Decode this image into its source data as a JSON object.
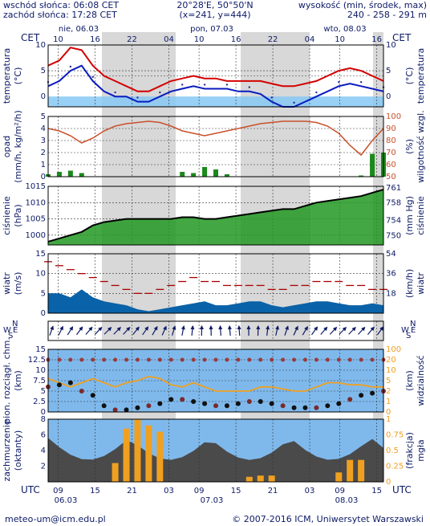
{
  "header": {
    "sunrise": "wschód słońca: 06:08 CET",
    "sunset": "zachód słońca: 17:28 CET",
    "coords": "20°28'E, 50°50'N",
    "grid": "(x=241, y=444)",
    "height_label": "wysokość (min, środek, max)",
    "height_values": "240 - 258 - 291 m"
  },
  "top_axis": {
    "tz_left": "CET",
    "tz_right": "CET",
    "days": [
      "nie, 06.03",
      "pon, 07.03",
      "wto, 08.03"
    ],
    "hours": [
      "10",
      "16",
      "22",
      "04",
      "10",
      "16",
      "22",
      "04",
      "10",
      "16"
    ]
  },
  "bottom_axis": {
    "tz_left": "UTC",
    "tz_right": "UTC",
    "hours": [
      "09",
      "15",
      "21",
      "03",
      "09",
      "15",
      "21",
      "03",
      "09",
      "15"
    ],
    "dates": [
      "06.03",
      "07.03",
      "08.03"
    ]
  },
  "footer": {
    "email": "meteo-um@icm.edu.pl",
    "copyright": "© 2007-2016 ICM, Uniwersytet Warszawski"
  },
  "panels": {
    "temperature": {
      "left_label": "temperatura",
      "left_unit": "(°C)",
      "right_label": "temperatura",
      "right_unit": "(°C)"
    },
    "precip": {
      "left_label": "opad",
      "left_unit": "(mm/h, kg/m²/h)",
      "right_label": "wilgotność wzgl.",
      "right_unit": "(%)"
    },
    "pressure": {
      "left_label": "ciśnienie",
      "left_unit": "(hPa)",
      "right_label": "ciśnienie",
      "right_unit": "(mm Hg)"
    },
    "wind": {
      "left_label": "wiatr",
      "left_unit": "(m/s)",
      "right_label": "wiatr",
      "right_unit": "(km/h)"
    },
    "winddir": {
      "compass": [
        "N",
        "W",
        "E",
        "S"
      ]
    },
    "visibility": {
      "left_label": "pion. rozciągł. chm.",
      "left_unit": "(km)",
      "right_label": "widzialność",
      "right_unit": "(km)"
    },
    "clouds": {
      "left_label": "zachmurzenie",
      "left_unit": "(oktanty)",
      "right_label": "mgła",
      "right_unit": "(frakcja)"
    }
  },
  "colors": {
    "night_band": "#d8d8d8",
    "temp_max": "#d40000",
    "temp_min": "#0a1bbf",
    "dewpoint": "#2a2a9a",
    "freeze_fill": "#86c8f5",
    "humidity": "#c9502a",
    "precip_bar": "#1a8a1a",
    "pressure_line": "#000000",
    "pressure_fill": "#229922",
    "wind_fill": "#0a62a8",
    "gust": "#aa0000",
    "fog_bar": "#f0a020",
    "sky": "#7fb9ec",
    "axis_text": "#0d1a66"
  },
  "chart_data": [
    {
      "type": "line",
      "name": "temperature",
      "x_hours_utc": [
        9,
        11,
        13,
        15,
        17,
        19,
        21,
        23,
        1,
        3,
        5,
        7,
        9,
        11,
        13,
        15,
        17,
        19,
        21,
        23,
        1,
        3,
        5,
        7,
        9,
        11,
        13,
        15,
        17,
        19,
        21
      ],
      "series": [
        {
          "values": [
            6,
            7,
            9.5,
            9,
            6,
            4,
            3,
            2,
            1,
            1,
            2,
            3,
            3.5,
            4,
            3.5,
            3.5,
            3,
            3,
            3,
            3,
            2.5,
            2,
            2,
            2.5,
            3,
            4,
            5,
            5.5,
            5,
            4,
            3
          ]
        },
        {
          "values": [
            2,
            3,
            5,
            6,
            3,
            1,
            0,
            0,
            -1,
            -1,
            0,
            1,
            1.5,
            2,
            1.5,
            1.5,
            1.5,
            1,
            1,
            0.5,
            -1,
            -2,
            -2,
            -1,
            0,
            1,
            2,
            2.5,
            2,
            1.5,
            1
          ]
        }
      ],
      "ylabel": "(°C)",
      "ylim": [
        -2,
        10
      ],
      "yticks": [
        0,
        5,
        10
      ]
    },
    {
      "type": "bar",
      "name": "precip_humidity",
      "x_hours_utc": [
        9,
        11,
        13,
        15,
        17,
        19,
        21,
        23,
        1,
        3,
        5,
        7,
        9,
        11,
        13,
        15,
        17,
        19,
        21,
        23,
        1,
        3,
        5,
        7,
        9,
        11,
        13,
        15,
        17,
        19,
        21
      ],
      "series": [
        {
          "values": [
            0.2,
            0.4,
            0.5,
            0.3,
            0,
            0,
            0,
            0,
            0,
            0,
            0,
            0,
            0.4,
            0.3,
            0.8,
            0.6,
            0.2,
            0,
            0,
            0,
            0,
            0,
            0,
            0,
            0,
            0,
            0,
            0,
            0.1,
            1.9,
            2.0
          ]
        },
        {
          "values": [
            90,
            88,
            84,
            78,
            82,
            88,
            92,
            94,
            95,
            96,
            95,
            92,
            88,
            86,
            84,
            86,
            88,
            90,
            92,
            94,
            95,
            96,
            96,
            96,
            95,
            92,
            86,
            76,
            68,
            80,
            90
          ]
        }
      ],
      "ylim_left": [
        0,
        5
      ],
      "yticks_left": [
        0,
        1,
        2,
        3,
        4,
        5
      ],
      "ylim_right": [
        50,
        100
      ],
      "yticks_right": [
        50,
        60,
        70,
        80,
        90,
        100
      ]
    },
    {
      "type": "area",
      "name": "pressure",
      "x_hours_utc": [
        9,
        11,
        13,
        15,
        17,
        19,
        21,
        23,
        1,
        3,
        5,
        7,
        9,
        11,
        13,
        15,
        17,
        19,
        21,
        23,
        1,
        3,
        5,
        7,
        9,
        11,
        13,
        15,
        17,
        19,
        21
      ],
      "series": [
        {
          "values": [
            998,
            999,
            1000,
            1001,
            1003,
            1004,
            1004.5,
            1005,
            1005,
            1005,
            1005,
            1005,
            1005.5,
            1005.5,
            1005,
            1005,
            1005.5,
            1006,
            1006.5,
            1007,
            1007.5,
            1008,
            1008,
            1009,
            1010,
            1010.5,
            1011,
            1011.5,
            1012,
            1013,
            1014
          ]
        }
      ],
      "ylabel": "(hPa)",
      "ylim": [
        997,
        1015
      ],
      "yticks": [
        1000,
        1005,
        1010,
        1015
      ],
      "yticks_right": [
        750,
        754,
        758,
        761
      ]
    },
    {
      "type": "area",
      "name": "wind",
      "x_hours_utc": [
        9,
        11,
        13,
        15,
        17,
        19,
        21,
        23,
        1,
        3,
        5,
        7,
        9,
        11,
        13,
        15,
        17,
        19,
        21,
        23,
        1,
        3,
        5,
        7,
        9,
        11,
        13,
        15,
        17,
        19,
        21
      ],
      "series": [
        {
          "values": [
            5,
            5,
            4,
            6,
            4,
            3,
            2.5,
            2,
            1,
            0.5,
            1,
            1.5,
            2,
            2.5,
            3,
            2,
            2,
            2.5,
            3,
            3,
            2,
            1.5,
            2,
            2.5,
            3,
            3,
            2.5,
            2,
            2,
            2.5,
            2
          ]
        },
        {
          "values": [
            13,
            12,
            11,
            10,
            9,
            8,
            7,
            6,
            5,
            5,
            6,
            7,
            8,
            9,
            8,
            8,
            7,
            7,
            7,
            7,
            6,
            6,
            7,
            7,
            8,
            8,
            8,
            7,
            7,
            6,
            6
          ]
        }
      ],
      "ylabel": "(m/s)",
      "ylim": [
        0,
        15
      ],
      "yticks": [
        0,
        5,
        10,
        15
      ],
      "yticks_right": [
        18,
        36,
        54
      ]
    },
    {
      "type": "scatter",
      "name": "cloud_visibility",
      "x_hours_utc": [
        9,
        11,
        13,
        15,
        17,
        19,
        21,
        23,
        1,
        3,
        5,
        7,
        9,
        11,
        13,
        15,
        17,
        19,
        21,
        23,
        1,
        3,
        5,
        7,
        9,
        11,
        13,
        15,
        17,
        19,
        21
      ],
      "series": [
        {
          "values": [
            6,
            6.5,
            7,
            5,
            4,
            1.5,
            0.5,
            0.5,
            1,
            1.5,
            2,
            3,
            3,
            2.5,
            2,
            1.5,
            1.5,
            2,
            2.5,
            2.5,
            2,
            1.5,
            1,
            1,
            1,
            1.5,
            2,
            3,
            4,
            4.5,
            5
          ]
        },
        {
          "values": [
            8,
            7,
            6,
            7,
            8,
            7,
            6,
            7,
            7.5,
            8.5,
            8,
            6.5,
            6,
            7,
            6,
            5,
            5,
            5,
            5,
            6,
            6,
            5.5,
            5,
            5,
            6,
            7,
            7,
            6.5,
            6.5,
            6,
            6
          ]
        }
      ],
      "ylim": [
        0,
        15
      ],
      "yticks": [
        0,
        2.5,
        5,
        7.5,
        10,
        12.5,
        15
      ],
      "yticks_right": [
        0,
        1,
        2,
        5,
        10,
        20,
        100
      ]
    },
    {
      "type": "bar",
      "name": "clouds_fog",
      "x_hours_utc": [
        9,
        11,
        13,
        15,
        17,
        19,
        21,
        23,
        1,
        3,
        5,
        7,
        9,
        11,
        13,
        15,
        17,
        19,
        21,
        23,
        1,
        3,
        5,
        7,
        9,
        11,
        13,
        15,
        17,
        19,
        21
      ],
      "series": [
        {
          "values": [
            0,
            0,
            0,
            0,
            0,
            0,
            0.3,
            0.85,
            1,
            0.9,
            0.8,
            0,
            0,
            0,
            0,
            0,
            0,
            0,
            0.08,
            0.1,
            0.1,
            0,
            0,
            0,
            0,
            0,
            0.15,
            0.35,
            0.35,
            0,
            0
          ]
        }
      ],
      "ylim": [
        0,
        1
      ],
      "yticks": [
        0,
        0.25,
        0.5,
        0.75,
        1
      ]
    }
  ]
}
